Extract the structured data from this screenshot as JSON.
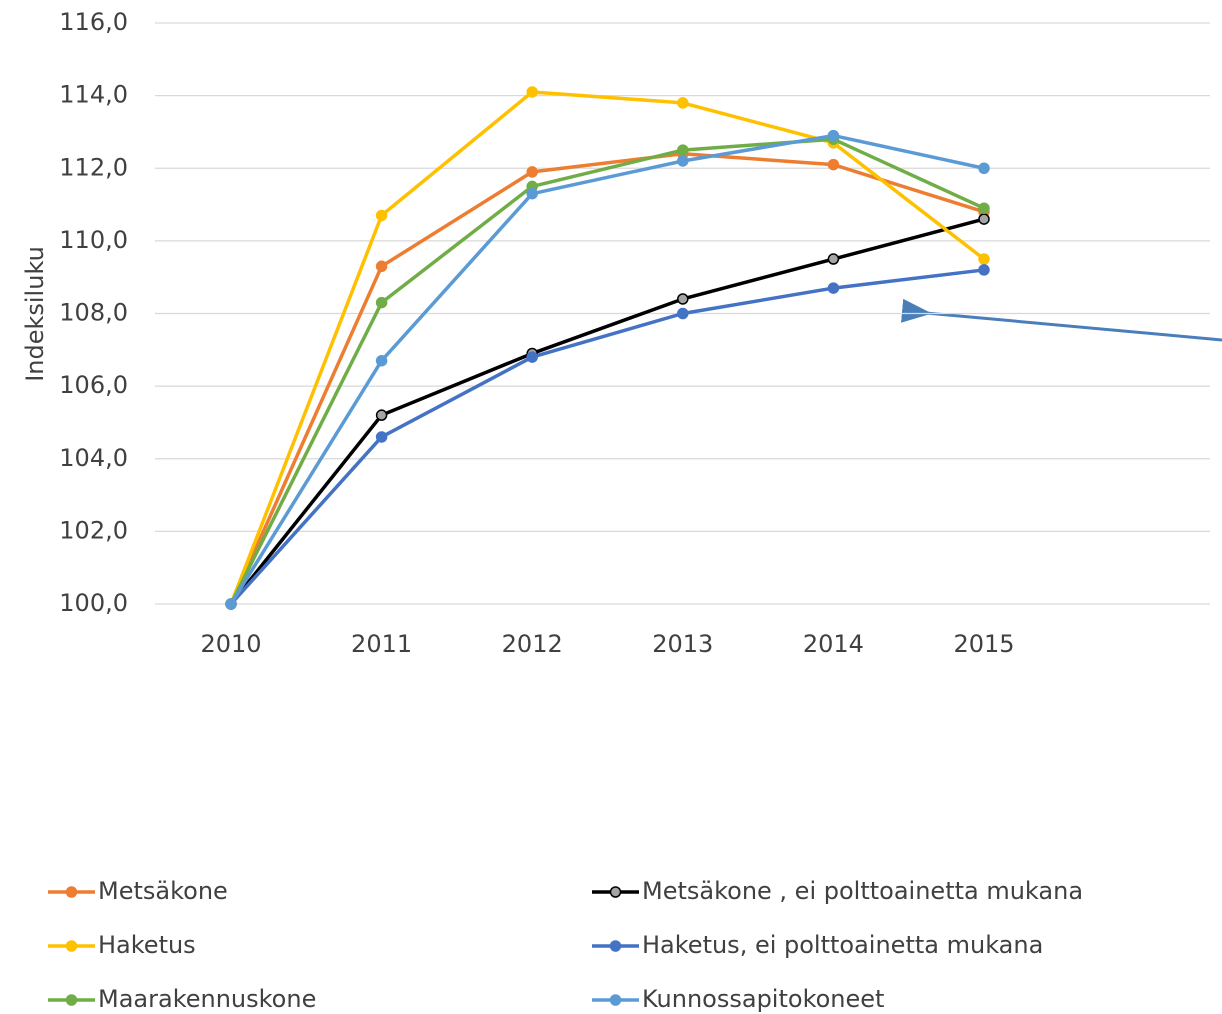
{
  "chart_data": {
    "type": "line",
    "y_label": "Indeksiluku",
    "categories": [
      "2010",
      "2011",
      "2012",
      "2013",
      "2014",
      "2015"
    ],
    "ylim": [
      100,
      116
    ],
    "yticks": [
      {
        "value": 100,
        "label": "100,0"
      },
      {
        "value": 102,
        "label": "102,0"
      },
      {
        "value": 104,
        "label": "104,0"
      },
      {
        "value": 106,
        "label": "106,0"
      },
      {
        "value": 108,
        "label": "108,0"
      },
      {
        "value": 110,
        "label": "110,0"
      },
      {
        "value": 112,
        "label": "112,0"
      },
      {
        "value": 114,
        "label": "114,0"
      },
      {
        "value": 116,
        "label": "116,0"
      }
    ],
    "grid": true,
    "legend": "bottom",
    "series": [
      {
        "name": "Metsäkone",
        "color": "#ed7d31",
        "values": [
          100,
          109.3,
          111.9,
          112.4,
          112.1,
          110.8
        ]
      },
      {
        "name": "Metsäkone , ei polttoainetta mukana",
        "color": "#000000",
        "marker_color": "#a5a5a5",
        "values": [
          100,
          105.2,
          106.9,
          108.4,
          109.5,
          110.6
        ]
      },
      {
        "name": "Haketus",
        "color": "#ffc000",
        "values": [
          100,
          110.7,
          114.1,
          113.8,
          112.7,
          109.5
        ]
      },
      {
        "name": "Haketus, ei polttoainetta mukana",
        "color": "#4472c4",
        "values": [
          100,
          104.6,
          106.8,
          108.0,
          108.7,
          109.2
        ]
      },
      {
        "name": "Maarakennuskone",
        "color": "#70ad47",
        "values": [
          100,
          108.3,
          111.5,
          112.5,
          112.8,
          110.9
        ]
      },
      {
        "name": "Kunnossapitokoneet",
        "color": "#5b9bd5",
        "values": [
          100,
          106.7,
          111.3,
          112.2,
          112.9,
          112.0
        ]
      }
    ]
  }
}
